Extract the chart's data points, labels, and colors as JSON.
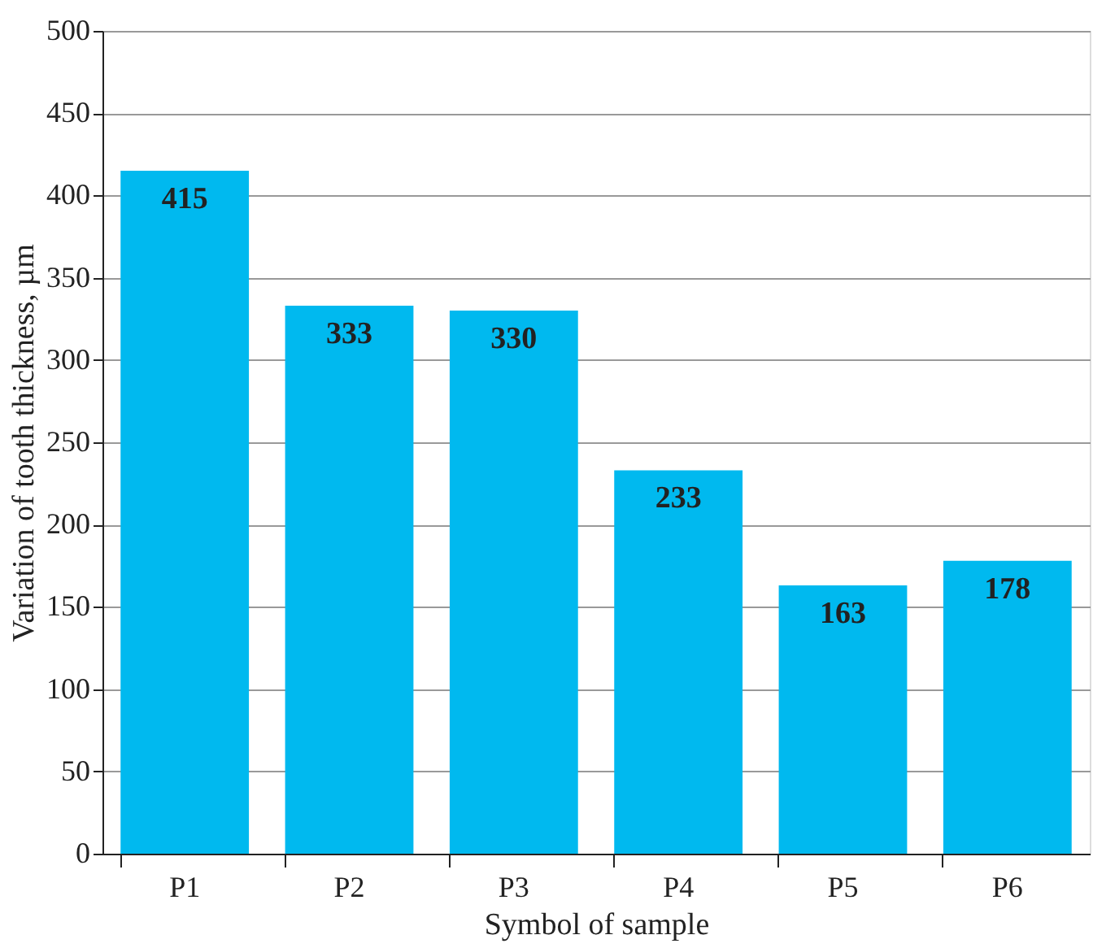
{
  "chart_data": {
    "type": "bar",
    "xlabel": "Symbol of sample",
    "ylabel": "Variation of tooth thickness, µm",
    "categories": [
      "P1",
      "P2",
      "P3",
      "P4",
      "P5",
      "P6"
    ],
    "values": [
      415,
      333,
      330,
      233,
      163,
      178
    ],
    "color": "#00b9ef",
    "ylim": [
      0,
      500
    ],
    "yticks": [
      0,
      50,
      100,
      150,
      200,
      250,
      300,
      350,
      400,
      450,
      500
    ],
    "grid": "y",
    "data_labels": true
  }
}
